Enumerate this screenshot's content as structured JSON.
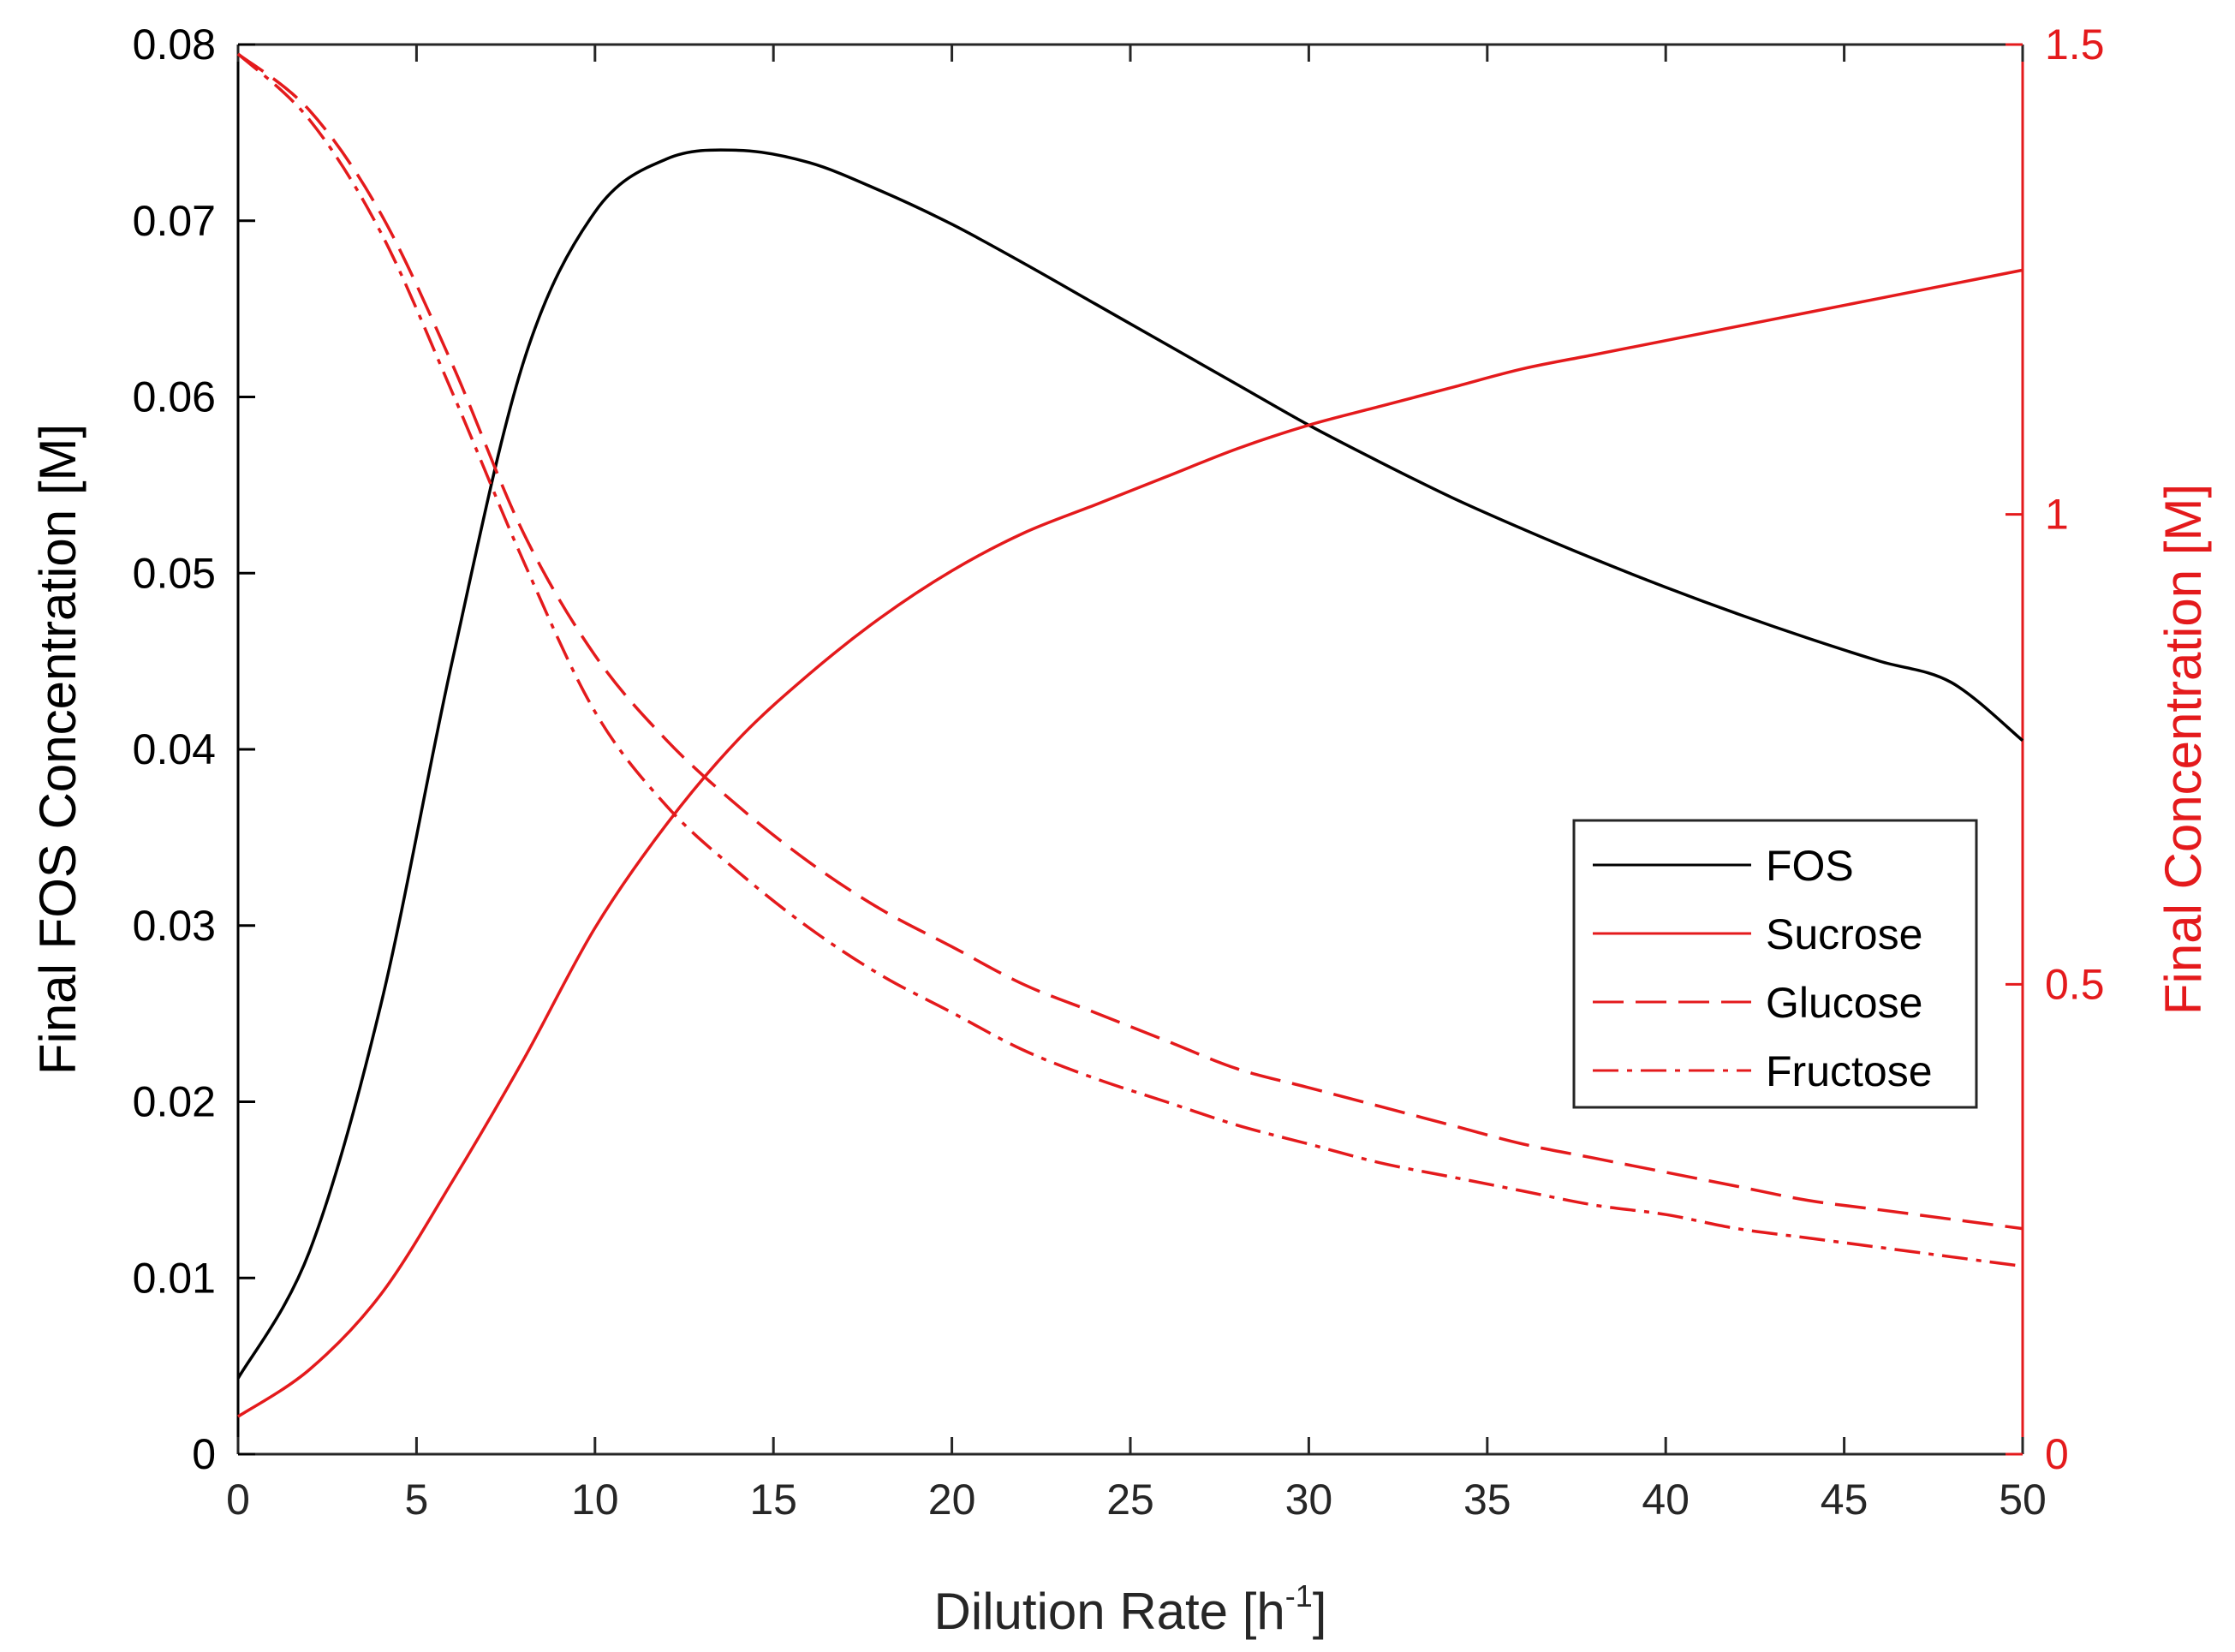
{
  "chart_data": {
    "type": "line",
    "xlabel": "Dilution Rate [h",
    "xlabel_sup": "-1",
    "xlabel_end": "]",
    "ylabel_left": "Final FOS Concentration [M]",
    "ylabel_right": "Final Concentration [M]",
    "xlim": [
      0,
      50
    ],
    "ylim_left": [
      0,
      0.08
    ],
    "ylim_right": [
      0,
      1.5
    ],
    "x_ticks": [
      0,
      5,
      10,
      15,
      20,
      25,
      30,
      35,
      40,
      45,
      50
    ],
    "x_tick_labels": [
      "0",
      "5",
      "10",
      "15",
      "20",
      "25",
      "30",
      "35",
      "40",
      "45",
      "50"
    ],
    "y_left_ticks": [
      0,
      0.01,
      0.02,
      0.03,
      0.04,
      0.05,
      0.06,
      0.07,
      0.08
    ],
    "y_left_tick_labels": [
      "0",
      "0.01",
      "0.02",
      "0.03",
      "0.04",
      "0.05",
      "0.06",
      "0.07",
      "0.08"
    ],
    "y_right_ticks": [
      0,
      0.5,
      1,
      1.5
    ],
    "y_right_tick_labels": [
      "0",
      "0.5",
      "1",
      "1.5"
    ],
    "colors": {
      "left_axis": "#000000",
      "right_axis": "#e41a1c",
      "fos": "#000000",
      "sugars": "#e41a1c"
    },
    "legend_position": "center-right",
    "x": [
      0,
      2,
      4,
      6,
      8,
      10,
      12,
      14,
      16,
      18,
      20,
      22,
      24,
      26,
      28,
      30,
      32,
      34,
      36,
      38,
      40,
      42,
      44,
      46,
      48,
      50
    ],
    "series": [
      {
        "name": "FOS",
        "axis": "left",
        "style": "solid",
        "values": [
          0.0043,
          0.0115,
          0.0255,
          0.045,
          0.062,
          0.0705,
          0.0735,
          0.074,
          0.0733,
          0.0717,
          0.0698,
          0.0676,
          0.0653,
          0.063,
          0.0607,
          0.0584,
          0.0563,
          0.0543,
          0.0525,
          0.0508,
          0.0492,
          0.0477,
          0.0463,
          0.045,
          0.0438,
          0.0405
        ]
      },
      {
        "name": "Sucrose",
        "axis": "right",
        "style": "solid",
        "values": [
          0.04,
          0.09,
          0.17,
          0.29,
          0.42,
          0.56,
          0.67,
          0.76,
          0.83,
          0.89,
          0.94,
          0.98,
          1.01,
          1.04,
          1.07,
          1.095,
          1.115,
          1.135,
          1.155,
          1.17,
          1.185,
          1.2,
          1.215,
          1.23,
          1.245,
          1.26
        ]
      },
      {
        "name": "Glucose",
        "axis": "right",
        "style": "dashed",
        "values": [
          1.49,
          1.43,
          1.32,
          1.16,
          0.98,
          0.85,
          0.76,
          0.69,
          0.63,
          0.58,
          0.54,
          0.5,
          0.47,
          0.44,
          0.41,
          0.39,
          0.37,
          0.35,
          0.33,
          0.315,
          0.3,
          0.285,
          0.27,
          0.26,
          0.25,
          0.24
        ]
      },
      {
        "name": "Fructose",
        "axis": "right",
        "style": "dashdot",
        "values": [
          1.49,
          1.42,
          1.3,
          1.13,
          0.95,
          0.79,
          0.69,
          0.62,
          0.56,
          0.51,
          0.47,
          0.43,
          0.4,
          0.375,
          0.35,
          0.33,
          0.31,
          0.295,
          0.28,
          0.265,
          0.255,
          0.24,
          0.23,
          0.22,
          0.21,
          0.2
        ]
      }
    ],
    "legend": [
      "FOS",
      "Sucrose",
      "Glucose",
      "Fructose"
    ]
  }
}
